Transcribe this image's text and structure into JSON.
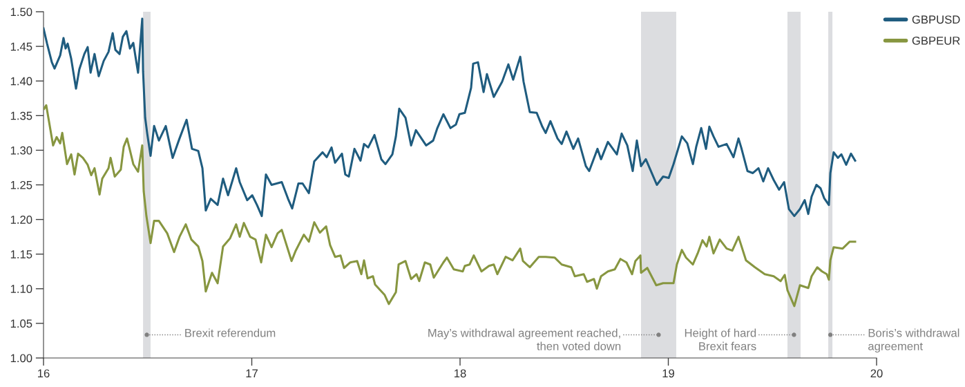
{
  "chart_data": {
    "type": "line",
    "xlim": [
      16,
      20
    ],
    "xticks": [
      16,
      17,
      18,
      19,
      20
    ],
    "ylim": [
      1.0,
      1.5
    ],
    "yticks": [
      {
        "value": 1.0,
        "label": "1.00"
      },
      {
        "value": 1.05,
        "label": "1.05"
      },
      {
        "value": 1.1,
        "label": "1.10"
      },
      {
        "value": 1.15,
        "label": "1.15"
      },
      {
        "value": 1.2,
        "label": "1.20"
      },
      {
        "value": 1.25,
        "label": "1.25"
      },
      {
        "value": 1.3,
        "label": "1.30"
      },
      {
        "value": 1.35,
        "label": "1.35"
      },
      {
        "value": 1.4,
        "label": "1.40"
      },
      {
        "value": 1.45,
        "label": "1.45"
      },
      {
        "value": 1.5,
        "label": "1.50"
      }
    ],
    "grid": false,
    "legend": "top right",
    "marker": "none",
    "line_style": "solid",
    "bands": [
      {
        "axis": "x",
        "from": 16.478,
        "to": 16.514,
        "label": "Brexit referendum",
        "color": "#dcdde0"
      },
      {
        "axis": "x",
        "from": 18.869,
        "to": 19.038,
        "label": "May’s withdrawal agreement reached,\nthen voted down",
        "color": "#dcdde0"
      },
      {
        "axis": "x",
        "from": 19.572,
        "to": 19.635,
        "label": "Height of hard\nBrexit fears",
        "color": "#dcdde0"
      },
      {
        "axis": "x",
        "from": 19.768,
        "to": 19.788,
        "label": "Boris’s withdrawal\nagreement",
        "color": "#dcdde0"
      }
    ],
    "series": [
      {
        "name": "GBPUSD",
        "color": "#1f5c7f",
        "x": [
          16.0,
          16.017,
          16.04,
          16.053,
          16.08,
          16.096,
          16.106,
          16.116,
          16.133,
          16.156,
          16.172,
          16.196,
          16.212,
          16.226,
          16.245,
          16.265,
          16.289,
          16.312,
          16.332,
          16.345,
          16.365,
          16.381,
          16.398,
          16.415,
          16.431,
          16.454,
          16.474,
          16.478,
          16.488,
          16.498,
          16.514,
          16.531,
          16.554,
          16.587,
          16.62,
          16.653,
          16.687,
          16.713,
          16.743,
          16.763,
          16.779,
          16.803,
          16.836,
          16.862,
          16.886,
          16.925,
          16.942,
          16.978,
          17.002,
          17.025,
          17.048,
          17.068,
          17.095,
          17.144,
          17.174,
          17.194,
          17.224,
          17.244,
          17.274,
          17.3,
          17.34,
          17.36,
          17.383,
          17.4,
          17.433,
          17.449,
          17.466,
          17.493,
          17.522,
          17.539,
          17.559,
          17.589,
          17.622,
          17.642,
          17.675,
          17.692,
          17.708,
          17.738,
          17.765,
          17.788,
          17.837,
          17.871,
          17.891,
          17.92,
          17.954,
          17.98,
          17.997,
          18.023,
          18.053,
          18.063,
          18.086,
          18.113,
          18.129,
          18.162,
          18.202,
          18.232,
          18.255,
          18.289,
          18.305,
          18.335,
          18.368,
          18.395,
          18.411,
          18.434,
          18.468,
          18.488,
          18.511,
          18.544,
          18.567,
          18.604,
          18.62,
          18.66,
          18.677,
          18.71,
          18.753,
          18.776,
          18.803,
          18.829,
          18.849,
          18.869,
          18.892,
          18.945,
          18.975,
          19.002,
          19.025,
          19.065,
          19.091,
          19.118,
          19.134,
          19.158,
          19.181,
          19.197,
          19.217,
          19.241,
          19.28,
          19.313,
          19.337,
          19.35,
          19.38,
          19.406,
          19.433,
          19.456,
          19.479,
          19.506,
          19.532,
          19.556,
          19.579,
          19.605,
          19.632,
          19.655,
          19.672,
          19.688,
          19.711,
          19.731,
          19.748,
          19.771,
          19.778,
          19.794,
          19.814,
          19.831,
          19.854,
          19.877,
          19.897
        ],
        "values": [
          1.476,
          1.454,
          1.427,
          1.418,
          1.437,
          1.462,
          1.447,
          1.454,
          1.432,
          1.389,
          1.417,
          1.439,
          1.449,
          1.412,
          1.439,
          1.407,
          1.429,
          1.442,
          1.469,
          1.445,
          1.439,
          1.464,
          1.472,
          1.447,
          1.455,
          1.412,
          1.49,
          1.414,
          1.347,
          1.324,
          1.292,
          1.335,
          1.314,
          1.335,
          1.289,
          1.317,
          1.344,
          1.302,
          1.299,
          1.274,
          1.213,
          1.23,
          1.221,
          1.259,
          1.235,
          1.274,
          1.254,
          1.228,
          1.235,
          1.221,
          1.205,
          1.265,
          1.25,
          1.254,
          1.23,
          1.216,
          1.252,
          1.252,
          1.238,
          1.284,
          1.297,
          1.29,
          1.304,
          1.282,
          1.295,
          1.265,
          1.262,
          1.302,
          1.285,
          1.309,
          1.304,
          1.322,
          1.287,
          1.28,
          1.294,
          1.32,
          1.36,
          1.347,
          1.307,
          1.329,
          1.307,
          1.314,
          1.332,
          1.352,
          1.332,
          1.337,
          1.352,
          1.354,
          1.39,
          1.425,
          1.427,
          1.384,
          1.41,
          1.377,
          1.399,
          1.424,
          1.402,
          1.435,
          1.399,
          1.355,
          1.354,
          1.334,
          1.325,
          1.342,
          1.317,
          1.309,
          1.327,
          1.302,
          1.317,
          1.277,
          1.27,
          1.302,
          1.287,
          1.312,
          1.294,
          1.324,
          1.307,
          1.27,
          1.314,
          1.277,
          1.287,
          1.25,
          1.262,
          1.26,
          1.28,
          1.32,
          1.31,
          1.28,
          1.305,
          1.332,
          1.302,
          1.334,
          1.32,
          1.305,
          1.309,
          1.29,
          1.317,
          1.304,
          1.27,
          1.267,
          1.274,
          1.255,
          1.274,
          1.257,
          1.243,
          1.254,
          1.215,
          1.205,
          1.215,
          1.228,
          1.208,
          1.233,
          1.25,
          1.245,
          1.231,
          1.221,
          1.267,
          1.297,
          1.289,
          1.294,
          1.279,
          1.295,
          1.285
        ]
      },
      {
        "name": "GBPEUR",
        "color": "#879640",
        "x": [
          16.003,
          16.013,
          16.03,
          16.046,
          16.063,
          16.08,
          16.09,
          16.113,
          16.133,
          16.149,
          16.166,
          16.189,
          16.212,
          16.229,
          16.245,
          16.269,
          16.282,
          16.312,
          16.322,
          16.342,
          16.371,
          16.385,
          16.401,
          16.415,
          16.431,
          16.454,
          16.474,
          16.481,
          16.494,
          16.514,
          16.531,
          16.554,
          16.594,
          16.627,
          16.653,
          16.683,
          16.71,
          16.743,
          16.763,
          16.779,
          16.809,
          16.836,
          16.862,
          16.896,
          16.925,
          16.942,
          16.962,
          16.992,
          17.018,
          17.045,
          17.068,
          17.095,
          17.124,
          17.144,
          17.191,
          17.211,
          17.25,
          17.274,
          17.3,
          17.327,
          17.357,
          17.376,
          17.4,
          17.426,
          17.443,
          17.473,
          17.506,
          17.526,
          17.539,
          17.556,
          17.582,
          17.592,
          17.638,
          17.658,
          17.692,
          17.705,
          17.738,
          17.765,
          17.791,
          17.804,
          17.831,
          17.857,
          17.874,
          17.92,
          17.937,
          17.97,
          18.013,
          18.023,
          18.046,
          18.066,
          18.103,
          18.139,
          18.162,
          18.179,
          18.219,
          18.252,
          18.289,
          18.302,
          18.335,
          18.378,
          18.411,
          18.454,
          18.488,
          18.534,
          18.551,
          18.594,
          18.61,
          18.643,
          18.657,
          18.677,
          18.71,
          18.743,
          18.77,
          18.799,
          18.826,
          18.842,
          18.866,
          18.869,
          18.899,
          18.942,
          18.975,
          19.025,
          19.041,
          19.065,
          19.085,
          19.118,
          19.141,
          19.164,
          19.184,
          19.197,
          19.217,
          19.247,
          19.28,
          19.307,
          19.337,
          19.373,
          19.416,
          19.463,
          19.506,
          19.539,
          19.559,
          19.572,
          19.605,
          19.632,
          19.672,
          19.688,
          19.715,
          19.738,
          19.761,
          19.771,
          19.778,
          19.794,
          19.837,
          19.871,
          19.897
        ],
        "values": [
          1.36,
          1.365,
          1.335,
          1.307,
          1.319,
          1.31,
          1.325,
          1.28,
          1.294,
          1.265,
          1.295,
          1.289,
          1.279,
          1.264,
          1.274,
          1.236,
          1.259,
          1.274,
          1.289,
          1.262,
          1.272,
          1.305,
          1.317,
          1.3,
          1.28,
          1.269,
          1.307,
          1.241,
          1.205,
          1.166,
          1.198,
          1.198,
          1.18,
          1.153,
          1.175,
          1.193,
          1.171,
          1.161,
          1.14,
          1.096,
          1.123,
          1.108,
          1.161,
          1.173,
          1.193,
          1.175,
          1.195,
          1.175,
          1.171,
          1.138,
          1.178,
          1.16,
          1.18,
          1.185,
          1.14,
          1.155,
          1.178,
          1.168,
          1.196,
          1.181,
          1.19,
          1.163,
          1.146,
          1.148,
          1.13,
          1.138,
          1.14,
          1.121,
          1.141,
          1.115,
          1.118,
          1.106,
          1.091,
          1.078,
          1.095,
          1.135,
          1.14,
          1.114,
          1.121,
          1.111,
          1.138,
          1.135,
          1.116,
          1.138,
          1.145,
          1.128,
          1.125,
          1.133,
          1.135,
          1.148,
          1.125,
          1.133,
          1.135,
          1.121,
          1.146,
          1.141,
          1.158,
          1.14,
          1.131,
          1.146,
          1.146,
          1.145,
          1.135,
          1.131,
          1.118,
          1.121,
          1.11,
          1.114,
          1.1,
          1.118,
          1.125,
          1.128,
          1.143,
          1.138,
          1.121,
          1.14,
          1.148,
          1.123,
          1.13,
          1.105,
          1.108,
          1.108,
          1.135,
          1.156,
          1.145,
          1.135,
          1.151,
          1.17,
          1.161,
          1.175,
          1.151,
          1.171,
          1.158,
          1.155,
          1.175,
          1.141,
          1.131,
          1.121,
          1.118,
          1.111,
          1.12,
          1.098,
          1.075,
          1.105,
          1.101,
          1.118,
          1.131,
          1.125,
          1.121,
          1.113,
          1.141,
          1.16,
          1.158,
          1.168,
          1.168
        ]
      }
    ]
  }
}
